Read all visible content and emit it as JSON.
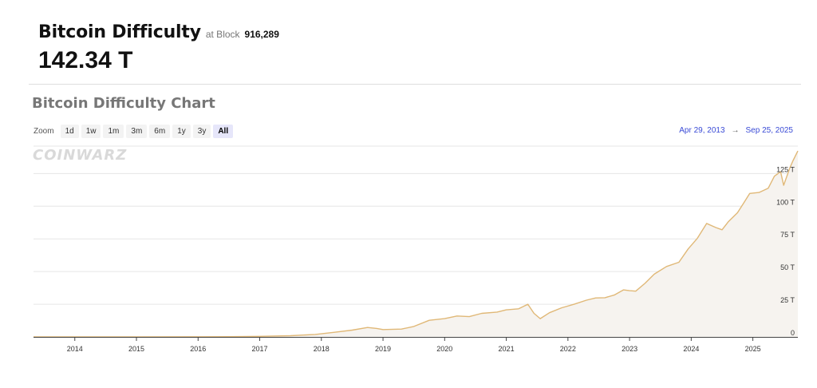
{
  "header": {
    "title": "Bitcoin Difficulty",
    "at_block_label": "at Block",
    "block_number": "916,289",
    "current_value": "142.34 T"
  },
  "chart_section": {
    "title": "Bitcoin Difficulty Chart",
    "zoom_label": "Zoom",
    "zoom_options": [
      "1d",
      "1w",
      "1m",
      "3m",
      "6m",
      "1y",
      "3y",
      "All"
    ],
    "zoom_selected": "All",
    "range_start": "Apr 29, 2013",
    "range_arrow": "→",
    "range_end": "Sep 25, 2025",
    "watermark": "CoinWarz"
  },
  "chart_data": {
    "type": "area",
    "title": "Bitcoin Difficulty Chart",
    "xlabel": "",
    "ylabel": "",
    "xlim": [
      2013.33,
      2025.73
    ],
    "ylim": [
      0,
      146
    ],
    "y_ticks": [
      0,
      25,
      50,
      75,
      100,
      125
    ],
    "y_tick_labels": [
      "0",
      "25 T",
      "50 T",
      "75 T",
      "100 T",
      "125 T"
    ],
    "x_ticks": [
      2014,
      2015,
      2016,
      2017,
      2018,
      2019,
      2020,
      2021,
      2022,
      2023,
      2024,
      2025
    ],
    "x_tick_labels": [
      "2014",
      "2015",
      "2016",
      "2017",
      "2018",
      "2019",
      "2020",
      "2021",
      "2022",
      "2023",
      "2024",
      "2025"
    ],
    "grid": true,
    "line_color": "#e0b877",
    "fill_color": "#f6f3ef",
    "series": [
      {
        "x": [
          2013.33,
          2014.0,
          2015.0,
          2016.0,
          2016.5,
          2017.0,
          2017.5,
          2017.9,
          2018.2,
          2018.5,
          2018.75,
          2018.9,
          2019.0,
          2019.3,
          2019.5,
          2019.75,
          2020.0,
          2020.2,
          2020.4,
          2020.6,
          2020.85,
          2021.0,
          2021.2,
          2021.35,
          2021.45,
          2021.55,
          2021.7,
          2021.9,
          2022.1,
          2022.3,
          2022.45,
          2022.6,
          2022.75,
          2022.9,
          2023.0,
          2023.1,
          2023.25,
          2023.4,
          2023.6,
          2023.8,
          2023.95,
          2024.1,
          2024.25,
          2024.4,
          2024.5,
          2024.6,
          2024.75,
          2024.85,
          2024.95,
          2025.1,
          2025.25,
          2025.35,
          2025.45,
          2025.5,
          2025.6,
          2025.65,
          2025.73
        ],
        "y": [
          1e-05,
          0.002,
          0.05,
          0.1,
          0.2,
          0.4,
          0.9,
          1.9,
          3.5,
          5.2,
          7.2,
          6.5,
          5.6,
          6.0,
          8.0,
          12.7,
          14.0,
          16.0,
          15.5,
          18.0,
          19.0,
          20.7,
          21.5,
          25.0,
          18.0,
          14.0,
          18.5,
          22.3,
          25.0,
          28.1,
          29.8,
          30.0,
          32.0,
          36.0,
          35.4,
          35.0,
          41.0,
          48.0,
          53.9,
          57.1,
          67.3,
          75.5,
          86.8,
          83.7,
          82.0,
          88.0,
          95.0,
          102.3,
          109.8,
          110.5,
          113.8,
          123.0,
          126.4,
          116.0,
          129.4,
          134.7,
          142.3
        ]
      }
    ]
  }
}
